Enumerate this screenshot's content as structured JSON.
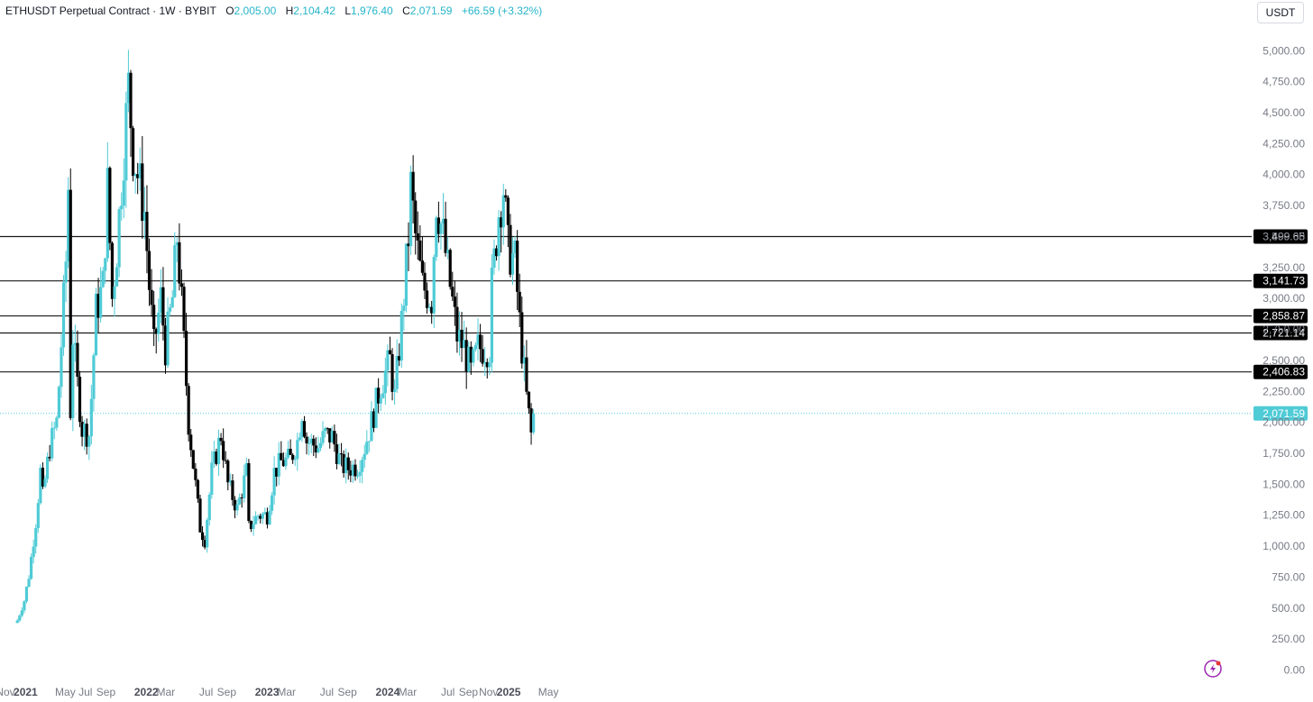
{
  "header": {
    "title": "ETHUSDT Perpetual Contract · 1W · BYBIT",
    "o_label": "O",
    "o_value": "2,005.00",
    "h_label": "H",
    "h_value": "2,104.42",
    "l_label": "L",
    "l_value": "1,976.40",
    "c_label": "C",
    "c_value": "2,071.59",
    "change": "+66.59 (+3.32%)"
  },
  "currency_button": "USDT",
  "colors": {
    "up": "#4fcbd6",
    "down": "#000000",
    "level_line": "#1a1a1a",
    "last_price": "#4fcbd6"
  },
  "chart_data": {
    "type": "candlestick",
    "interval": "1W",
    "ylim": [
      0,
      5100
    ],
    "y_ticks": [
      "0.00",
      "250.00",
      "500.00",
      "750.00",
      "1,000.00",
      "1,250.00",
      "1,500.00",
      "1,750.00",
      "2,000.00",
      "2,250.00",
      "2,500.00",
      "2,750.00",
      "3,000.00",
      "3,250.00",
      "3,500.00",
      "3,750.00",
      "4,000.00",
      "4,250.00",
      "4,500.00",
      "4,750.00",
      "5,000.00"
    ],
    "y_tick_values": [
      0,
      250,
      500,
      750,
      1000,
      1250,
      1500,
      1750,
      2000,
      2250,
      2500,
      2750,
      3000,
      3250,
      3500,
      3750,
      4000,
      4250,
      4500,
      4750,
      5000
    ],
    "x_labels": [
      {
        "label": "Nov",
        "date": "2020-11-01",
        "year": false
      },
      {
        "label": "2021",
        "date": "2021-01-01",
        "year": true
      },
      {
        "label": "May",
        "date": "2021-05-01",
        "year": false
      },
      {
        "label": "Jul",
        "date": "2021-07-01",
        "year": false
      },
      {
        "label": "Sep",
        "date": "2021-09-01",
        "year": false
      },
      {
        "label": "2022",
        "date": "2022-01-01",
        "year": true
      },
      {
        "label": "Mar",
        "date": "2022-03-01",
        "year": false
      },
      {
        "label": "Jul",
        "date": "2022-07-01",
        "year": false
      },
      {
        "label": "Sep",
        "date": "2022-09-01",
        "year": false
      },
      {
        "label": "2023",
        "date": "2023-01-01",
        "year": true
      },
      {
        "label": "Mar",
        "date": "2023-03-01",
        "year": false
      },
      {
        "label": "Jul",
        "date": "2023-07-01",
        "year": false
      },
      {
        "label": "Sep",
        "date": "2023-09-01",
        "year": false
      },
      {
        "label": "2024",
        "date": "2024-01-01",
        "year": true
      },
      {
        "label": "Mar",
        "date": "2024-03-01",
        "year": false
      },
      {
        "label": "Jul",
        "date": "2024-07-01",
        "year": false
      },
      {
        "label": "Sep",
        "date": "2024-09-01",
        "year": false
      },
      {
        "label": "Nov",
        "date": "2024-11-01",
        "year": false
      },
      {
        "label": "2025",
        "date": "2025-01-01",
        "year": true
      },
      {
        "label": "May",
        "date": "2025-05-01",
        "year": false
      }
    ],
    "levels": [
      {
        "value": 3499.65,
        "label": "3,499.65"
      },
      {
        "value": 3141.73,
        "label": "3,141.73"
      },
      {
        "value": 2858.87,
        "label": "2,858.87"
      },
      {
        "value": 2721.14,
        "label": "2,721.14"
      },
      {
        "value": 2406.83,
        "label": "2,406.83"
      }
    ],
    "last_price": {
      "value": 2071.59,
      "label": "2,071.59"
    },
    "anchors": [
      [
        "2020-12-07",
        400
      ],
      [
        "2020-12-28",
        560
      ],
      [
        "2021-01-11",
        760
      ],
      [
        "2021-02-01",
        1200
      ],
      [
        "2021-02-15",
        1600
      ],
      [
        "2021-02-22",
        1400
      ],
      [
        "2021-03-15",
        1800
      ],
      [
        "2021-04-05",
        2000
      ],
      [
        "2021-04-12",
        2300
      ],
      [
        "2021-05-03",
        3300
      ],
      [
        "2021-05-10",
        3900
      ],
      [
        "2021-05-17",
        2100
      ],
      [
        "2021-05-24",
        2700
      ],
      [
        "2021-06-07",
        2300
      ],
      [
        "2021-06-21",
        1950
      ],
      [
        "2021-07-12",
        1900
      ],
      [
        "2021-07-19",
        2200
      ],
      [
        "2021-08-02",
        2900
      ],
      [
        "2021-08-23",
        3100
      ],
      [
        "2021-09-06",
        3900
      ],
      [
        "2021-09-20",
        3000
      ],
      [
        "2021-10-04",
        3400
      ],
      [
        "2021-10-25",
        4200
      ],
      [
        "2021-11-08",
        4700
      ],
      [
        "2021-11-22",
        4200
      ],
      [
        "2021-12-06",
        4000
      ],
      [
        "2021-12-27",
        3700
      ],
      [
        "2022-01-10",
        3100
      ],
      [
        "2022-01-24",
        2600
      ],
      [
        "2022-02-14",
        3000
      ],
      [
        "2022-02-28",
        2600
      ],
      [
        "2022-03-21",
        3000
      ],
      [
        "2022-04-04",
        3500
      ],
      [
        "2022-04-18",
        2950
      ],
      [
        "2022-05-09",
        2000
      ],
      [
        "2022-06-13",
        1150
      ],
      [
        "2022-06-27",
        1050
      ],
      [
        "2022-07-18",
        1600
      ],
      [
        "2022-08-15",
        1900
      ],
      [
        "2022-09-05",
        1500
      ],
      [
        "2022-10-03",
        1300
      ],
      [
        "2022-10-31",
        1600
      ],
      [
        "2022-11-07",
        1150
      ],
      [
        "2022-12-05",
        1250
      ],
      [
        "2023-01-02",
        1250
      ],
      [
        "2023-01-23",
        1600
      ],
      [
        "2023-02-13",
        1680
      ],
      [
        "2023-03-13",
        1700
      ],
      [
        "2023-04-03",
        1850
      ],
      [
        "2023-04-17",
        2100
      ],
      [
        "2023-05-01",
        1850
      ],
      [
        "2023-06-05",
        1800
      ],
      [
        "2023-06-26",
        1900
      ],
      [
        "2023-07-17",
        1880
      ],
      [
        "2023-08-14",
        1650
      ],
      [
        "2023-09-04",
        1630
      ],
      [
        "2023-10-02",
        1650
      ],
      [
        "2023-10-23",
        1800
      ],
      [
        "2023-11-13",
        2000
      ],
      [
        "2023-12-11",
        2300
      ],
      [
        "2024-01-08",
        2500
      ],
      [
        "2024-01-22",
        2200
      ],
      [
        "2024-02-12",
        2800
      ],
      [
        "2024-03-04",
        3500
      ],
      [
        "2024-03-11",
        3900
      ],
      [
        "2024-03-25",
        3500
      ],
      [
        "2024-04-15",
        3100
      ],
      [
        "2024-05-13",
        3000
      ],
      [
        "2024-05-27",
        3800
      ],
      [
        "2024-06-17",
        3500
      ],
      [
        "2024-07-08",
        3100
      ],
      [
        "2024-07-29",
        2700
      ],
      [
        "2024-08-19",
        2600
      ],
      [
        "2024-09-09",
        2400
      ],
      [
        "2024-09-30",
        2600
      ],
      [
        "2024-10-14",
        2600
      ],
      [
        "2024-11-04",
        2600
      ],
      [
        "2024-11-11",
        3100
      ],
      [
        "2024-12-02",
        3700
      ],
      [
        "2024-12-16",
        3900
      ],
      [
        "2024-12-30",
        3400
      ],
      [
        "2025-01-20",
        3300
      ],
      [
        "2025-02-03",
        2800
      ],
      [
        "2025-02-24",
        2200
      ],
      [
        "2025-03-10",
        1900
      ],
      [
        "2025-03-17",
        2070
      ]
    ]
  }
}
